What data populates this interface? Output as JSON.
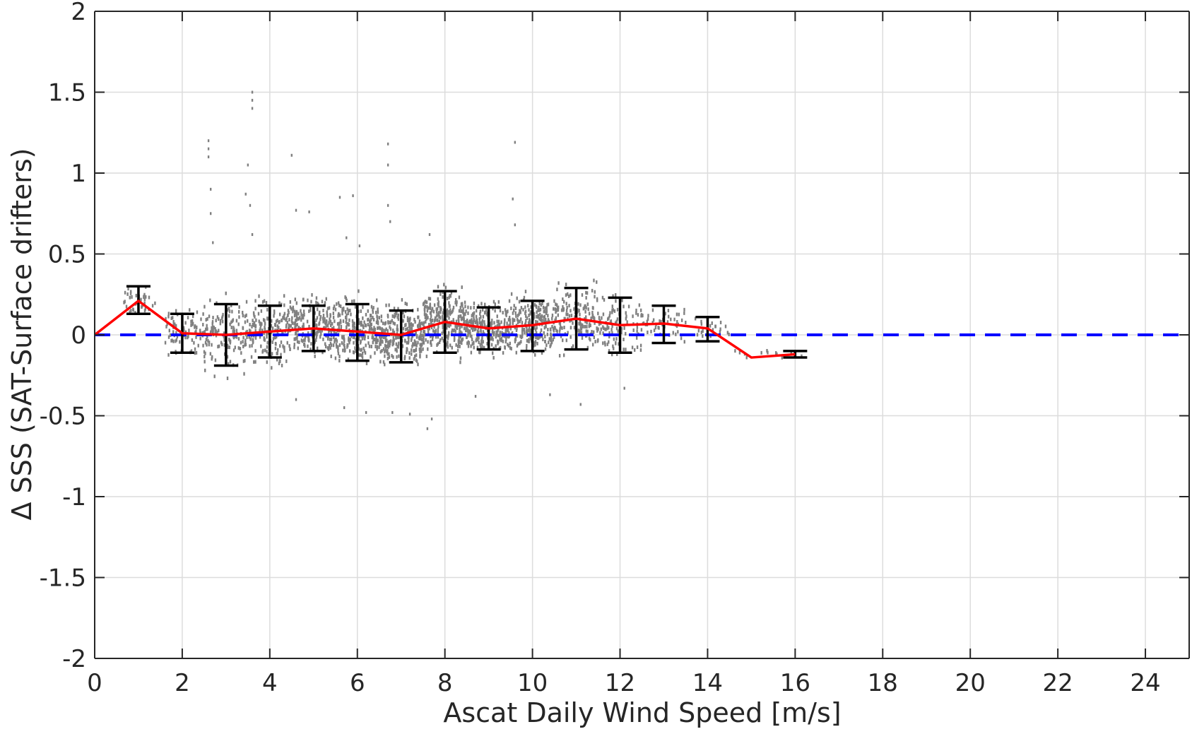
{
  "chart_data": {
    "type": "scatter",
    "xlabel": "Ascat Daily Wind Speed [m/s]",
    "ylabel": "Δ SSS (SAT-Surface drifters)",
    "xlim": [
      0,
      25
    ],
    "ylim": [
      -2,
      2
    ],
    "xticks": [
      0,
      2,
      4,
      6,
      8,
      10,
      12,
      14,
      16,
      18,
      20,
      22,
      24
    ],
    "yticks": [
      -2,
      -1.5,
      -1,
      -0.5,
      0,
      0.5,
      1,
      1.5,
      2
    ],
    "ytick_labels": [
      "-2",
      "-1.5",
      "-1",
      "-0.5",
      "0",
      "0.5",
      "1",
      "1.5",
      "2"
    ],
    "grid": true,
    "colors": {
      "scatter": "#808080",
      "mean_line": "#ff0000",
      "error_bars": "#000000",
      "zero_line": "#0000ff",
      "grid": "#dcdcdc",
      "axes": "#262626"
    },
    "series": [
      {
        "kind": "scatter",
        "points_by_bin": [
          {
            "x_range": [
              0.6,
              1.4
            ],
            "y_center": 0.2,
            "spread": 0.08,
            "count": 40
          },
          {
            "x_range": [
              1.6,
              2.5
            ],
            "y_center": 0.02,
            "spread": 0.12,
            "count": 80
          },
          {
            "x_range": [
              2.5,
              3.5
            ],
            "y_center": 0.0,
            "spread": 0.2,
            "count": 140
          },
          {
            "x_range": [
              3.5,
              4.5
            ],
            "y_center": 0.03,
            "spread": 0.17,
            "count": 180
          },
          {
            "x_range": [
              4.5,
              5.5
            ],
            "y_center": 0.04,
            "spread": 0.15,
            "count": 220
          },
          {
            "x_range": [
              5.5,
              6.5
            ],
            "y_center": 0.02,
            "spread": 0.18,
            "count": 240
          },
          {
            "x_range": [
              6.5,
              7.5
            ],
            "y_center": 0.0,
            "spread": 0.16,
            "count": 260
          },
          {
            "x_range": [
              7.5,
              8.5
            ],
            "y_center": 0.08,
            "spread": 0.18,
            "count": 280
          },
          {
            "x_range": [
              8.5,
              9.5
            ],
            "y_center": 0.04,
            "spread": 0.13,
            "count": 260
          },
          {
            "x_range": [
              9.5,
              10.5
            ],
            "y_center": 0.06,
            "spread": 0.15,
            "count": 220
          },
          {
            "x_range": [
              10.5,
              11.5
            ],
            "y_center": 0.1,
            "spread": 0.18,
            "count": 160
          },
          {
            "x_range": [
              11.5,
              12.5
            ],
            "y_center": 0.06,
            "spread": 0.16,
            "count": 100
          },
          {
            "x_range": [
              12.5,
              13.5
            ],
            "y_center": 0.07,
            "spread": 0.1,
            "count": 50
          },
          {
            "x_range": [
              13.5,
              14.5
            ],
            "y_center": 0.04,
            "spread": 0.07,
            "count": 20
          },
          {
            "x_range": [
              14.5,
              16.3
            ],
            "y_center": -0.12,
            "spread": 0.03,
            "count": 12
          }
        ],
        "outliers": [
          {
            "x": 2.6,
            "y": 1.2
          },
          {
            "x": 2.6,
            "y": 1.15
          },
          {
            "x": 2.6,
            "y": 1.1
          },
          {
            "x": 2.65,
            "y": 0.9
          },
          {
            "x": 2.65,
            "y": 0.75
          },
          {
            "x": 2.7,
            "y": 0.57
          },
          {
            "x": 3.6,
            "y": 1.5
          },
          {
            "x": 3.6,
            "y": 1.45
          },
          {
            "x": 3.6,
            "y": 1.4
          },
          {
            "x": 3.5,
            "y": 1.05
          },
          {
            "x": 3.45,
            "y": 0.87
          },
          {
            "x": 3.55,
            "y": 0.8
          },
          {
            "x": 3.6,
            "y": 0.62
          },
          {
            "x": 4.5,
            "y": 1.11
          },
          {
            "x": 4.6,
            "y": 0.77
          },
          {
            "x": 4.9,
            "y": 0.76
          },
          {
            "x": 5.6,
            "y": 0.85
          },
          {
            "x": 5.9,
            "y": 0.86
          },
          {
            "x": 5.75,
            "y": 0.6
          },
          {
            "x": 6.05,
            "y": 0.55
          },
          {
            "x": 6.7,
            "y": 1.18
          },
          {
            "x": 6.7,
            "y": 1.05
          },
          {
            "x": 6.7,
            "y": 0.8
          },
          {
            "x": 6.75,
            "y": 0.7
          },
          {
            "x": 7.65,
            "y": 0.62
          },
          {
            "x": 9.6,
            "y": 1.19
          },
          {
            "x": 9.55,
            "y": 0.84
          },
          {
            "x": 9.6,
            "y": 0.68
          },
          {
            "x": 4.6,
            "y": -0.4
          },
          {
            "x": 5.7,
            "y": -0.45
          },
          {
            "x": 6.2,
            "y": -0.48
          },
          {
            "x": 6.8,
            "y": -0.48
          },
          {
            "x": 7.6,
            "y": -0.58
          },
          {
            "x": 7.7,
            "y": -0.52
          },
          {
            "x": 8.7,
            "y": -0.38
          },
          {
            "x": 10.4,
            "y": -0.37
          },
          {
            "x": 11.1,
            "y": -0.43
          },
          {
            "x": 12.1,
            "y": -0.33
          },
          {
            "x": 7.2,
            "y": -0.49
          }
        ]
      },
      {
        "kind": "line_errorbar",
        "x": [
          0,
          1,
          2,
          3,
          4,
          5,
          6,
          7,
          8,
          9,
          10,
          11,
          12,
          13,
          14,
          15,
          16
        ],
        "mean": [
          0.0,
          0.21,
          0.01,
          0.0,
          0.02,
          0.04,
          0.02,
          0.0,
          0.08,
          0.04,
          0.06,
          0.1,
          0.06,
          0.07,
          0.04,
          -0.14,
          -0.12
        ],
        "upper": [
          null,
          0.3,
          0.13,
          0.19,
          0.18,
          0.18,
          0.19,
          0.15,
          0.27,
          0.17,
          0.21,
          0.29,
          0.23,
          0.18,
          0.11,
          null,
          -0.1
        ],
        "lower": [
          null,
          0.13,
          -0.11,
          -0.19,
          -0.14,
          -0.1,
          -0.16,
          -0.17,
          -0.11,
          -0.09,
          -0.1,
          -0.09,
          -0.11,
          -0.05,
          -0.04,
          null,
          -0.14
        ]
      },
      {
        "kind": "reference_line",
        "y": 0,
        "style": "dashed"
      }
    ]
  }
}
